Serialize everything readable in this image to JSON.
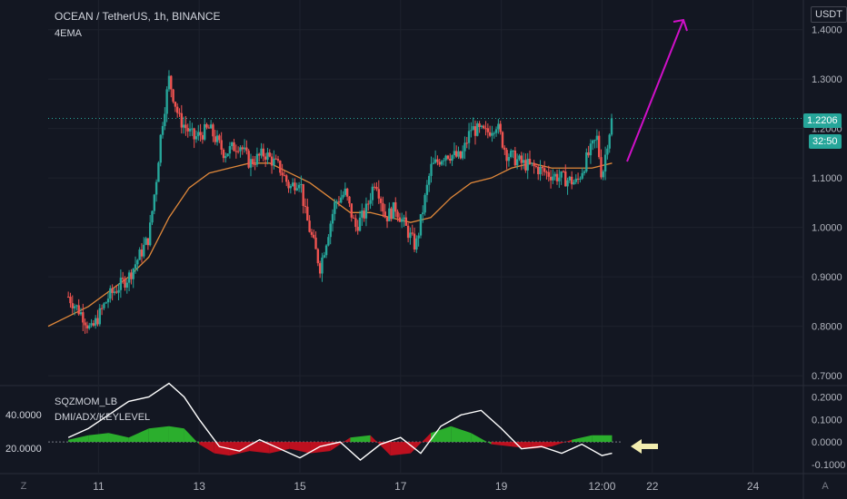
{
  "chart_data": [
    {
      "type": "candlestick",
      "title": "OCEAN / TetherUS, 1h, BINANCE",
      "indicator_label": "4EMA",
      "currency": "USDT",
      "price_ticks": [
        "1.4000",
        "1.3000",
        "1.2000",
        "1.1000",
        "1.0000",
        "0.9000",
        "0.8000",
        "0.7000"
      ],
      "ylim": [
        0.68,
        1.46
      ],
      "last_price": "1.2206",
      "countdown": "32:50",
      "x_ticks": [
        "11",
        "13",
        "15",
        "17",
        "19",
        "12:00",
        "22",
        "24"
      ],
      "x_tick_days": [
        11,
        13,
        15,
        17,
        19,
        21,
        22,
        24
      ],
      "price_path_days": [
        10.4,
        10.7,
        10.85,
        11.2,
        11.6,
        11.8,
        12.0,
        12.15,
        12.25,
        12.4,
        12.6,
        12.9,
        13.2,
        13.5,
        13.8,
        14.0,
        14.3,
        14.6,
        14.8,
        15.0,
        15.1,
        15.4,
        15.7,
        15.9,
        16.1,
        16.3,
        16.5,
        16.7,
        16.9,
        17.1,
        17.3,
        17.6,
        17.9,
        18.2,
        18.4,
        18.7,
        18.9,
        19.1,
        19.4,
        19.7,
        19.9,
        20.2,
        20.5,
        20.7,
        20.9,
        21.0,
        21.1,
        21.2
      ],
      "price_path": [
        0.86,
        0.82,
        0.79,
        0.86,
        0.9,
        0.94,
        0.98,
        1.1,
        1.2,
        1.3,
        1.22,
        1.18,
        1.2,
        1.15,
        1.17,
        1.13,
        1.15,
        1.12,
        1.08,
        1.1,
        1.03,
        0.92,
        1.05,
        1.07,
        1.0,
        1.03,
        1.1,
        1.02,
        1.04,
        1.0,
        0.96,
        1.12,
        1.15,
        1.14,
        1.2,
        1.19,
        1.21,
        1.15,
        1.13,
        1.12,
        1.11,
        1.1,
        1.09,
        1.14,
        1.18,
        1.1,
        1.17,
        1.22
      ],
      "ema_path_days": [
        10.0,
        10.4,
        10.8,
        11.2,
        11.6,
        12.0,
        12.4,
        12.8,
        13.2,
        13.6,
        14.0,
        14.4,
        14.8,
        15.2,
        15.6,
        16.0,
        16.4,
        16.8,
        17.2,
        17.6,
        18.0,
        18.4,
        18.8,
        19.2,
        19.6,
        20.0,
        20.4,
        20.8,
        21.2
      ],
      "ema_path": [
        0.8,
        0.82,
        0.84,
        0.87,
        0.9,
        0.94,
        1.02,
        1.08,
        1.11,
        1.12,
        1.13,
        1.13,
        1.11,
        1.09,
        1.06,
        1.03,
        1.03,
        1.02,
        1.01,
        1.02,
        1.06,
        1.09,
        1.1,
        1.12,
        1.13,
        1.12,
        1.12,
        1.12,
        1.13
      ],
      "annotation": "magenta arrow pointing up-right"
    },
    {
      "type": "area",
      "labels": [
        "SQZMOM_LB",
        "DMI/ADX/KEYLEVEL"
      ],
      "left_ticks": [
        "40.0000",
        "20.0000"
      ],
      "right_ticks": [
        "0.2000",
        "0.1000",
        "0.0000",
        "-0.1000"
      ],
      "ylim": [
        -0.14,
        0.25
      ],
      "momentum_days": [
        10.4,
        10.8,
        11.2,
        11.6,
        12.0,
        12.4,
        12.7,
        13.0,
        13.3,
        13.6,
        14.0,
        14.4,
        14.8,
        15.2,
        15.6,
        16.0,
        16.4,
        16.8,
        17.2,
        17.6,
        18.0,
        18.4,
        18.8,
        19.2,
        19.6,
        20.0,
        20.4,
        20.8,
        21.2
      ],
      "momentum": [
        0.01,
        0.03,
        0.04,
        0.02,
        0.06,
        0.07,
        0.06,
        -0.01,
        -0.05,
        -0.06,
        -0.04,
        -0.05,
        -0.03,
        -0.05,
        -0.04,
        0.02,
        0.03,
        -0.06,
        -0.05,
        0.04,
        0.07,
        0.04,
        -0.01,
        -0.02,
        -0.03,
        -0.02,
        0.01,
        0.03,
        0.03
      ],
      "adx_days": [
        10.4,
        10.8,
        11.2,
        11.6,
        12.0,
        12.4,
        12.7,
        13.0,
        13.4,
        13.8,
        14.2,
        14.6,
        15.0,
        15.4,
        15.8,
        16.2,
        16.6,
        17.0,
        17.4,
        17.8,
        18.2,
        18.6,
        19.0,
        19.4,
        19.8,
        20.2,
        20.6,
        21.0,
        21.2
      ],
      "adx": [
        0.02,
        0.06,
        0.12,
        0.18,
        0.2,
        0.26,
        0.2,
        0.1,
        -0.02,
        -0.04,
        0.01,
        -0.03,
        -0.07,
        -0.02,
        0.0,
        -0.08,
        -0.01,
        0.02,
        -0.05,
        0.07,
        0.12,
        0.14,
        0.06,
        -0.03,
        -0.02,
        -0.05,
        -0.01,
        -0.06,
        -0.05
      ],
      "key_level": 0.0,
      "annotation": "yellow arrow pointing left"
    }
  ],
  "toolbar": {
    "tz_label": "Z",
    "auto_label": "A"
  },
  "colors": {
    "background": "#131722",
    "up": "#26a69a",
    "down": "#ef5350",
    "ema": "#e0883a",
    "arrow_up": "#d010c8",
    "arrow_left": "#f3eeb0",
    "momentum_up": "#2fbf2f",
    "momentum_down": "#d0101f",
    "adx_line": "#ffffff",
    "last_price_badge": "#26a69a"
  }
}
